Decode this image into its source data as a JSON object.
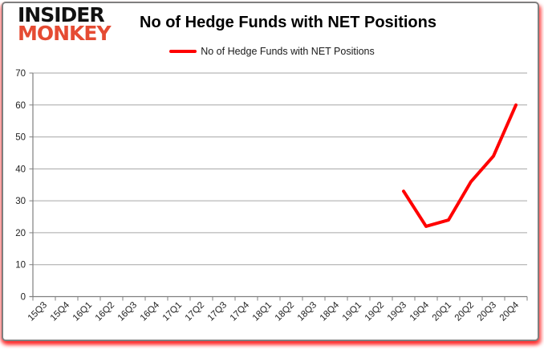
{
  "frame": {
    "border_color": "#7f7f7f",
    "glow_color": "#ff0000",
    "background": "#ffffff"
  },
  "logo": {
    "line1": "INSIDER",
    "line2": "MONKEY",
    "line1_color": "#111111",
    "line2_color": "#e54b33"
  },
  "header": {
    "title": "No of Hedge Funds with NET Positions"
  },
  "legend": {
    "label": "No of Hedge Funds with NET Positions",
    "swatch_color": "#ff0000"
  },
  "chart_data": {
    "type": "line",
    "title": "No of Hedge Funds with NET Positions",
    "xlabel": "",
    "ylabel": "",
    "ylim": [
      0,
      70
    ],
    "yticks": [
      0,
      10,
      20,
      30,
      40,
      50,
      60,
      70
    ],
    "grid": true,
    "legend_position": "top",
    "grid_color": "#a6a6a6",
    "axis_color": "#7f7f7f",
    "tick_label_color": "#1f1f1f",
    "categories": [
      "15Q3",
      "15Q4",
      "16Q1",
      "16Q2",
      "16Q3",
      "16Q4",
      "17Q1",
      "17Q2",
      "17Q3",
      "17Q4",
      "18Q1",
      "18Q2",
      "18Q3",
      "18Q4",
      "19Q1",
      "19Q2",
      "19Q3",
      "19Q4",
      "20Q1",
      "20Q2",
      "20Q3",
      "20Q4"
    ],
    "series": [
      {
        "name": "No of Hedge Funds with NET Positions",
        "color": "#ff0000",
        "values": [
          null,
          null,
          null,
          null,
          null,
          null,
          null,
          null,
          null,
          null,
          null,
          null,
          null,
          null,
          null,
          null,
          33,
          22,
          24,
          36,
          44,
          60
        ]
      }
    ]
  }
}
